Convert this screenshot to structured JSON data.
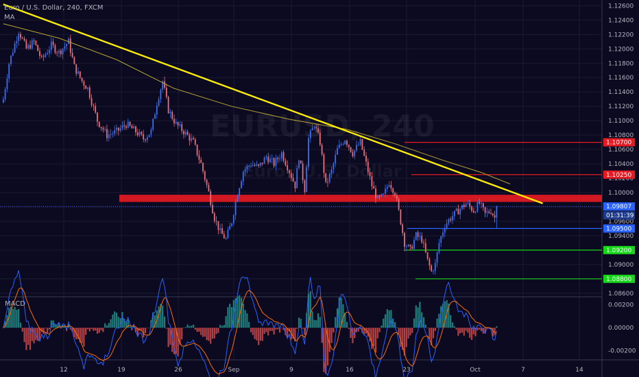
{
  "header": {
    "symbol_title": "Euro / U.S. Dollar, 240, FXCM",
    "ma_label": "MA"
  },
  "watermark": {
    "symbol": "EURUSD, 240",
    "name": "Euro / U.S. Dollar"
  },
  "macd_label": "MACD",
  "countdown": "01:31:39",
  "colors": {
    "background": "#0b0a20",
    "up": "#3a6ff0",
    "down": "#e8707a",
    "trendline": "#ffee00",
    "ma": "#b8a335",
    "support_zone": "#e41b23",
    "resistance": "#e41b23",
    "support": "#16d61a",
    "current": "#2962ff",
    "macd_line": "#2962ff",
    "signal_line": "#ff6d00"
  },
  "chart_data": {
    "type": "candlestick",
    "symbol": "EURUSD",
    "timeframe": "240",
    "x_ticks": [
      "12",
      "19",
      "26",
      "Sep",
      "9",
      "16",
      "23",
      "Oct",
      "7",
      "14"
    ],
    "y_ticks": [
      "1.12600",
      "1.12400",
      "1.12200",
      "1.12000",
      "1.11800",
      "1.11600",
      "1.11400",
      "1.11200",
      "1.11000",
      "1.10800",
      "1.10600",
      "1.10400",
      "1.10200",
      "1.10000",
      "1.09800",
      "1.09600",
      "1.09400",
      "1.09200",
      "1.09000",
      "1.08800",
      "1.08600"
    ],
    "ylim": [
      1.0855,
      1.1268
    ],
    "current_price": 1.09807,
    "levels": [
      {
        "price": 1.107,
        "label": "1.10700",
        "kind": "resistance"
      },
      {
        "price": 1.1025,
        "label": "1.10250",
        "kind": "resistance"
      },
      {
        "price": 1.095,
        "label": "1.09500",
        "kind": "current"
      },
      {
        "price": 1.092,
        "label": "1.09200",
        "kind": "support"
      },
      {
        "price": 1.088,
        "label": "1.08800",
        "kind": "support"
      }
    ],
    "current_label": "1.09807",
    "zone": {
      "low": 1.0987,
      "high": 1.0997
    },
    "trendline": {
      "from": [
        1,
        1.1262
      ],
      "to": [
        282,
        1.0985
      ]
    },
    "ma_points": [
      [
        1,
        1.1235
      ],
      [
        30,
        1.1215
      ],
      [
        60,
        1.1185
      ],
      [
        90,
        1.1145
      ],
      [
        120,
        1.112
      ],
      [
        150,
        1.1102
      ],
      [
        180,
        1.1088
      ],
      [
        205,
        1.1068
      ],
      [
        230,
        1.1045
      ],
      [
        250,
        1.1028
      ],
      [
        265,
        1.1012
      ]
    ],
    "path": [
      [
        1,
        1.113
      ],
      [
        4,
        1.118
      ],
      [
        9,
        1.1225
      ],
      [
        13,
        1.12
      ],
      [
        17,
        1.121
      ],
      [
        21,
        1.1185
      ],
      [
        26,
        1.1205
      ],
      [
        30,
        1.1195
      ],
      [
        35,
        1.121
      ],
      [
        38,
        1.1175
      ],
      [
        42,
        1.1155
      ],
      [
        45,
        1.1145
      ],
      [
        50,
        1.11
      ],
      [
        55,
        1.108
      ],
      [
        60,
        1.1085
      ],
      [
        65,
        1.1095
      ],
      [
        70,
        1.1085
      ],
      [
        74,
        1.1075
      ],
      [
        78,
        1.1085
      ],
      [
        81,
        1.1125
      ],
      [
        84,
        1.1155
      ],
      [
        87,
        1.1115
      ],
      [
        91,
        1.1095
      ],
      [
        95,
        1.1085
      ],
      [
        100,
        1.107
      ],
      [
        104,
        1.104
      ],
      [
        108,
        1.1
      ],
      [
        111,
        1.0965
      ],
      [
        114,
        1.0945
      ],
      [
        117,
        1.0935
      ],
      [
        120,
        1.096
      ],
      [
        123,
        1.1
      ],
      [
        126,
        1.103
      ],
      [
        130,
        1.104
      ],
      [
        134,
        1.1035
      ],
      [
        138,
        1.105
      ],
      [
        142,
        1.104
      ],
      [
        146,
        1.1055
      ],
      [
        150,
        1.103
      ],
      [
        153,
        1.101
      ],
      [
        155,
        1.105
      ],
      [
        158,
        1.1005
      ],
      [
        160,
        1.1075
      ],
      [
        163,
        1.1095
      ],
      [
        166,
        1.107
      ],
      [
        169,
        1.101
      ],
      [
        172,
        1.103
      ],
      [
        175,
        1.106
      ],
      [
        179,
        1.1075
      ],
      [
        183,
        1.1055
      ],
      [
        187,
        1.107
      ],
      [
        190,
        1.104
      ],
      [
        193,
        1.101
      ],
      [
        196,
        1.099
      ],
      [
        199,
        1.0995
      ],
      [
        202,
        1.1015
      ],
      [
        205,
        1.1
      ],
      [
        208,
        1.096
      ],
      [
        210,
        1.093
      ],
      [
        213,
        1.092
      ],
      [
        216,
        1.094
      ],
      [
        219,
        1.0935
      ],
      [
        222,
        1.0905
      ],
      [
        224,
        1.089
      ],
      [
        226,
        1.09
      ],
      [
        228,
        1.093
      ],
      [
        231,
        1.0955
      ],
      [
        234,
        1.0965
      ],
      [
        238,
        1.0975
      ],
      [
        242,
        1.0985
      ],
      [
        246,
        1.0975
      ],
      [
        249,
        1.0985
      ],
      [
        252,
        1.097
      ],
      [
        255,
        1.0975
      ],
      [
        258,
        1.096
      ]
    ],
    "macd": {
      "ylim": [
        -0.0028,
        0.0027
      ],
      "y_ticks": [
        "0.00200",
        "0.00000",
        "-0.00200"
      ]
    }
  }
}
